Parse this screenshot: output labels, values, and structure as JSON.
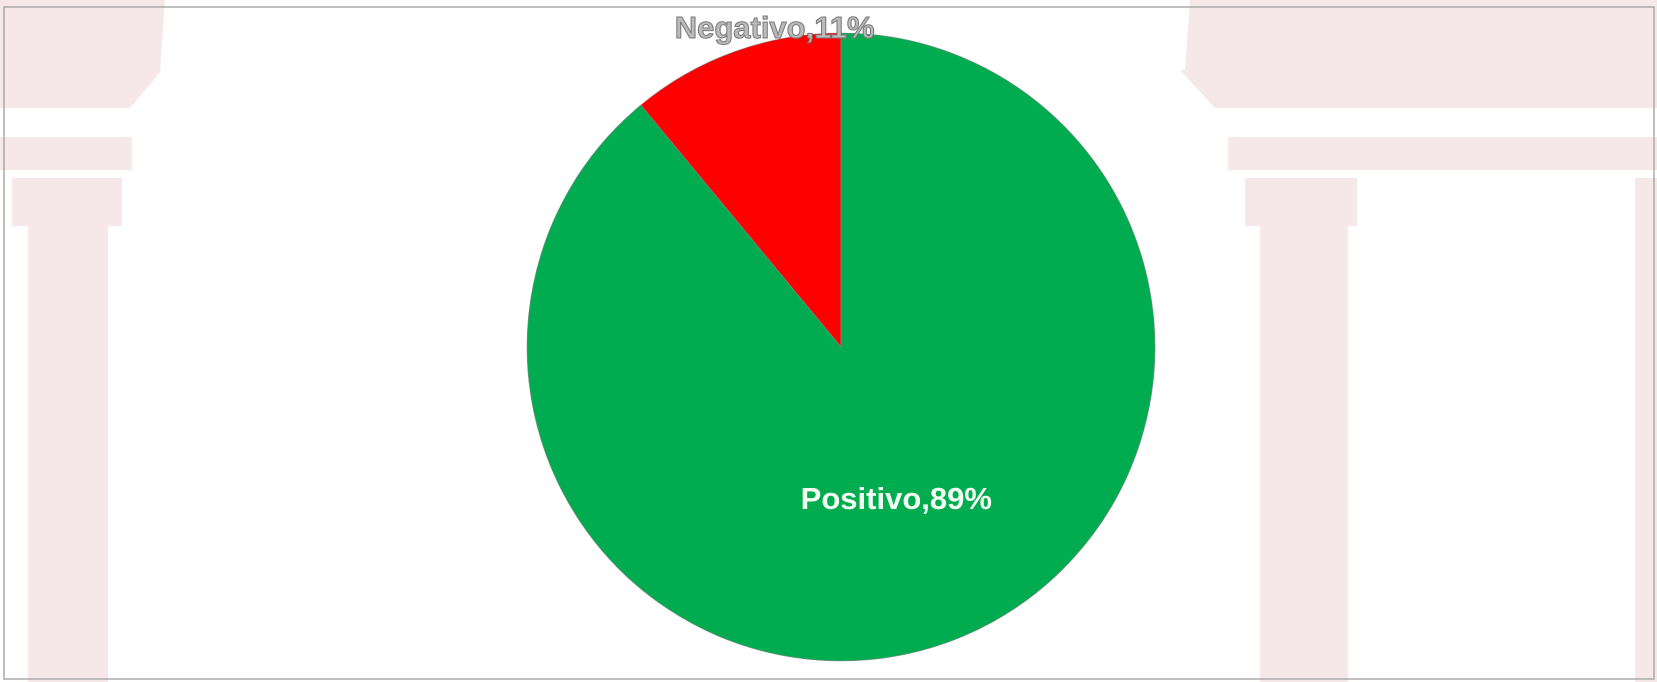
{
  "chart_data": {
    "type": "pie",
    "categories": [
      "Negativo",
      "Positivo"
    ],
    "values": [
      11,
      89
    ],
    "value_labels": [
      "Negativo,11%",
      "Positivo,89%"
    ],
    "colors": [
      "#ff0000",
      "#00ac4f"
    ]
  }
}
